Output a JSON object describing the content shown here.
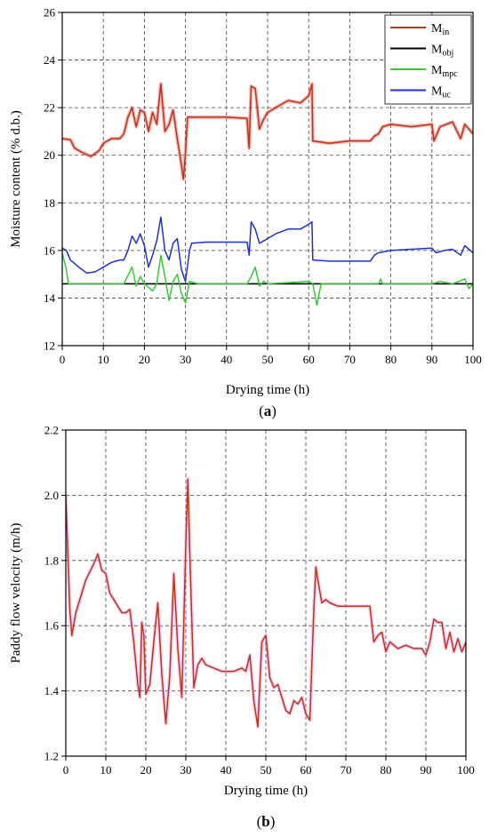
{
  "chart_data": [
    {
      "type": "line",
      "panel_label": "a",
      "xlabel": "Drying time (h)",
      "ylabel": "Moisture content (% d.b.)",
      "xlim": [
        0,
        100
      ],
      "ylim": [
        12,
        26
      ],
      "xticks": [
        0,
        10,
        20,
        30,
        40,
        50,
        60,
        70,
        80,
        90,
        100
      ],
      "yticks": [
        12,
        14,
        16,
        18,
        20,
        22,
        24,
        26
      ],
      "grid": true,
      "legend": "top-right",
      "series": [
        {
          "name": "M",
          "sub": "in",
          "color": "#b33a1a",
          "glow": "#ff2222",
          "points": [
            [
              0,
              20.7
            ],
            [
              2,
              20.65
            ],
            [
              3,
              20.3
            ],
            [
              5,
              20.1
            ],
            [
              7,
              19.95
            ],
            [
              9,
              20.2
            ],
            [
              10,
              20.5
            ],
            [
              12,
              20.7
            ],
            [
              14,
              20.7
            ],
            [
              15,
              20.9
            ],
            [
              16,
              21.6
            ],
            [
              17,
              22.0
            ],
            [
              18,
              21.2
            ],
            [
              19,
              21.9
            ],
            [
              20,
              21.8
            ],
            [
              21,
              21.0
            ],
            [
              22,
              21.8
            ],
            [
              23,
              21.3
            ],
            [
              24,
              23.0
            ],
            [
              25,
              21.0
            ],
            [
              26,
              21.3
            ],
            [
              27,
              21.9
            ],
            [
              28,
              20.7
            ],
            [
              29,
              19.6
            ],
            [
              29.5,
              19.0
            ],
            [
              30,
              20.1
            ],
            [
              30.5,
              21.6
            ],
            [
              35,
              21.6
            ],
            [
              40,
              21.6
            ],
            [
              45,
              21.55
            ],
            [
              45.5,
              20.3
            ],
            [
              46,
              22.9
            ],
            [
              47,
              22.8
            ],
            [
              48,
              21.1
            ],
            [
              49,
              21.5
            ],
            [
              50,
              21.8
            ],
            [
              52,
              22.0
            ],
            [
              55,
              22.3
            ],
            [
              58,
              22.2
            ],
            [
              60,
              22.5
            ],
            [
              60.8,
              23.0
            ],
            [
              61,
              20.6
            ],
            [
              65,
              20.5
            ],
            [
              70,
              20.6
            ],
            [
              75,
              20.6
            ],
            [
              76,
              20.8
            ],
            [
              77,
              20.9
            ],
            [
              78,
              21.2
            ],
            [
              80,
              21.3
            ],
            [
              85,
              21.2
            ],
            [
              90,
              21.3
            ],
            [
              90.5,
              20.6
            ],
            [
              92,
              21.2
            ],
            [
              95,
              21.4
            ],
            [
              97,
              20.7
            ],
            [
              98,
              21.3
            ],
            [
              100,
              20.9
            ]
          ]
        },
        {
          "name": "M",
          "sub": "obj",
          "color": "#000000",
          "points": [
            [
              0,
              14.6
            ],
            [
              100,
              14.6
            ]
          ]
        },
        {
          "name": "M",
          "sub": "mpc",
          "color": "#33cc33",
          "points": [
            [
              0,
              15.9
            ],
            [
              1,
              15.2
            ],
            [
              1.5,
              14.6
            ],
            [
              5,
              14.6
            ],
            [
              10,
              14.6
            ],
            [
              15,
              14.6
            ],
            [
              17,
              15.3
            ],
            [
              18,
              14.5
            ],
            [
              19,
              14.9
            ],
            [
              20,
              14.6
            ],
            [
              22,
              14.3
            ],
            [
              23,
              14.6
            ],
            [
              24,
              15.8
            ],
            [
              25,
              14.9
            ],
            [
              26,
              13.9
            ],
            [
              27,
              14.7
            ],
            [
              28,
              15.0
            ],
            [
              29,
              14.2
            ],
            [
              30,
              13.8
            ],
            [
              31,
              14.7
            ],
            [
              33,
              14.6
            ],
            [
              45,
              14.6
            ],
            [
              46,
              14.9
            ],
            [
              47,
              15.3
            ],
            [
              48,
              14.5
            ],
            [
              49,
              14.7
            ],
            [
              50,
              14.6
            ],
            [
              60,
              14.7
            ],
            [
              61,
              14.6
            ],
            [
              62,
              13.7
            ],
            [
              63,
              14.6
            ],
            [
              70,
              14.6
            ],
            [
              77,
              14.6
            ],
            [
              77.5,
              14.8
            ],
            [
              78,
              14.6
            ],
            [
              90,
              14.6
            ],
            [
              92,
              14.7
            ],
            [
              95,
              14.6
            ],
            [
              98,
              14.8
            ],
            [
              99,
              14.4
            ],
            [
              100,
              14.6
            ]
          ]
        },
        {
          "name": "M",
          "sub": "uc",
          "color": "#1f2fd6",
          "points": [
            [
              0,
              16.1
            ],
            [
              1,
              16.0
            ],
            [
              2,
              15.6
            ],
            [
              4,
              15.3
            ],
            [
              6,
              15.05
            ],
            [
              8,
              15.1
            ],
            [
              10,
              15.3
            ],
            [
              12,
              15.5
            ],
            [
              14,
              15.6
            ],
            [
              15,
              15.6
            ],
            [
              16,
              16.0
            ],
            [
              17,
              16.6
            ],
            [
              18,
              16.3
            ],
            [
              19,
              16.7
            ],
            [
              20,
              16.2
            ],
            [
              21,
              15.3
            ],
            [
              22,
              15.8
            ],
            [
              23,
              16.4
            ],
            [
              24,
              17.4
            ],
            [
              25,
              16.0
            ],
            [
              26,
              15.6
            ],
            [
              27,
              16.3
            ],
            [
              28,
              16.5
            ],
            [
              29,
              15.2
            ],
            [
              30,
              14.7
            ],
            [
              31,
              16.0
            ],
            [
              31.5,
              16.3
            ],
            [
              35,
              16.35
            ],
            [
              40,
              16.35
            ],
            [
              45,
              16.35
            ],
            [
              45.5,
              15.8
            ],
            [
              46,
              17.2
            ],
            [
              47,
              16.9
            ],
            [
              48,
              16.3
            ],
            [
              50,
              16.5
            ],
            [
              52,
              16.7
            ],
            [
              55,
              16.9
            ],
            [
              58,
              16.9
            ],
            [
              60,
              17.1
            ],
            [
              60.8,
              17.2
            ],
            [
              61,
              15.6
            ],
            [
              65,
              15.55
            ],
            [
              70,
              15.55
            ],
            [
              75,
              15.55
            ],
            [
              76,
              15.8
            ],
            [
              77,
              15.9
            ],
            [
              80,
              16.0
            ],
            [
              85,
              16.05
            ],
            [
              90,
              16.1
            ],
            [
              91,
              15.9
            ],
            [
              93,
              16.0
            ],
            [
              95,
              16.05
            ],
            [
              97,
              15.8
            ],
            [
              98,
              16.2
            ],
            [
              100,
              15.9
            ]
          ]
        }
      ]
    },
    {
      "type": "line",
      "panel_label": "b",
      "xlabel": "Drying time (h)",
      "ylabel": "Paddy flow velocity (m/h)",
      "xlim": [
        0,
        100
      ],
      "ylim": [
        1.2,
        2.2
      ],
      "xticks": [
        0,
        10,
        20,
        30,
        40,
        50,
        60,
        70,
        80,
        90,
        100
      ],
      "yticks": [
        1.2,
        1.4,
        1.6,
        1.8,
        2.0,
        2.2
      ],
      "grid": true,
      "series": [
        {
          "color": "#b33a1a",
          "glow": "#ff66dd",
          "points": [
            [
              0,
              2.0
            ],
            [
              1,
              1.65
            ],
            [
              1.5,
              1.57
            ],
            [
              2.5,
              1.64
            ],
            [
              4,
              1.7
            ],
            [
              5,
              1.74
            ],
            [
              7,
              1.79
            ],
            [
              8,
              1.82
            ],
            [
              9,
              1.77
            ],
            [
              10,
              1.76
            ],
            [
              11,
              1.7
            ],
            [
              12,
              1.68
            ],
            [
              13,
              1.66
            ],
            [
              14,
              1.64
            ],
            [
              15,
              1.64
            ],
            [
              16,
              1.65
            ],
            [
              17,
              1.55
            ],
            [
              18,
              1.42
            ],
            [
              18.5,
              1.38
            ],
            [
              19,
              1.61
            ],
            [
              19.5,
              1.57
            ],
            [
              20,
              1.39
            ],
            [
              21,
              1.42
            ],
            [
              22,
              1.55
            ],
            [
              23,
              1.67
            ],
            [
              24,
              1.45
            ],
            [
              25,
              1.3
            ],
            [
              26,
              1.45
            ],
            [
              27,
              1.76
            ],
            [
              28,
              1.53
            ],
            [
              29,
              1.38
            ],
            [
              30,
              1.85
            ],
            [
              30.5,
              2.05
            ],
            [
              31,
              1.82
            ],
            [
              32,
              1.41
            ],
            [
              33,
              1.48
            ],
            [
              34,
              1.5
            ],
            [
              35,
              1.48
            ],
            [
              37,
              1.47
            ],
            [
              39,
              1.46
            ],
            [
              42,
              1.46
            ],
            [
              44,
              1.47
            ],
            [
              45,
              1.46
            ],
            [
              46,
              1.51
            ],
            [
              47,
              1.37
            ],
            [
              48,
              1.29
            ],
            [
              49,
              1.55
            ],
            [
              50,
              1.57
            ],
            [
              51,
              1.44
            ],
            [
              52,
              1.41
            ],
            [
              53,
              1.42
            ],
            [
              54,
              1.38
            ],
            [
              55,
              1.34
            ],
            [
              56,
              1.33
            ],
            [
              57,
              1.37
            ],
            [
              58,
              1.36
            ],
            [
              59,
              1.38
            ],
            [
              60,
              1.33
            ],
            [
              61,
              1.31
            ],
            [
              62,
              1.65
            ],
            [
              62.5,
              1.78
            ],
            [
              63,
              1.74
            ],
            [
              64,
              1.67
            ],
            [
              65,
              1.68
            ],
            [
              66,
              1.67
            ],
            [
              68,
              1.66
            ],
            [
              70,
              1.66
            ],
            [
              72,
              1.66
            ],
            [
              74,
              1.66
            ],
            [
              76,
              1.66
            ],
            [
              77,
              1.55
            ],
            [
              78,
              1.57
            ],
            [
              79,
              1.58
            ],
            [
              80,
              1.52
            ],
            [
              81,
              1.55
            ],
            [
              83,
              1.53
            ],
            [
              85,
              1.54
            ],
            [
              87,
              1.53
            ],
            [
              89,
              1.53
            ],
            [
              90,
              1.51
            ],
            [
              91,
              1.55
            ],
            [
              92,
              1.62
            ],
            [
              93,
              1.61
            ],
            [
              94,
              1.61
            ],
            [
              95,
              1.53
            ],
            [
              96,
              1.58
            ],
            [
              97,
              1.52
            ],
            [
              98,
              1.56
            ],
            [
              99,
              1.52
            ],
            [
              100,
              1.55
            ]
          ]
        }
      ]
    }
  ]
}
